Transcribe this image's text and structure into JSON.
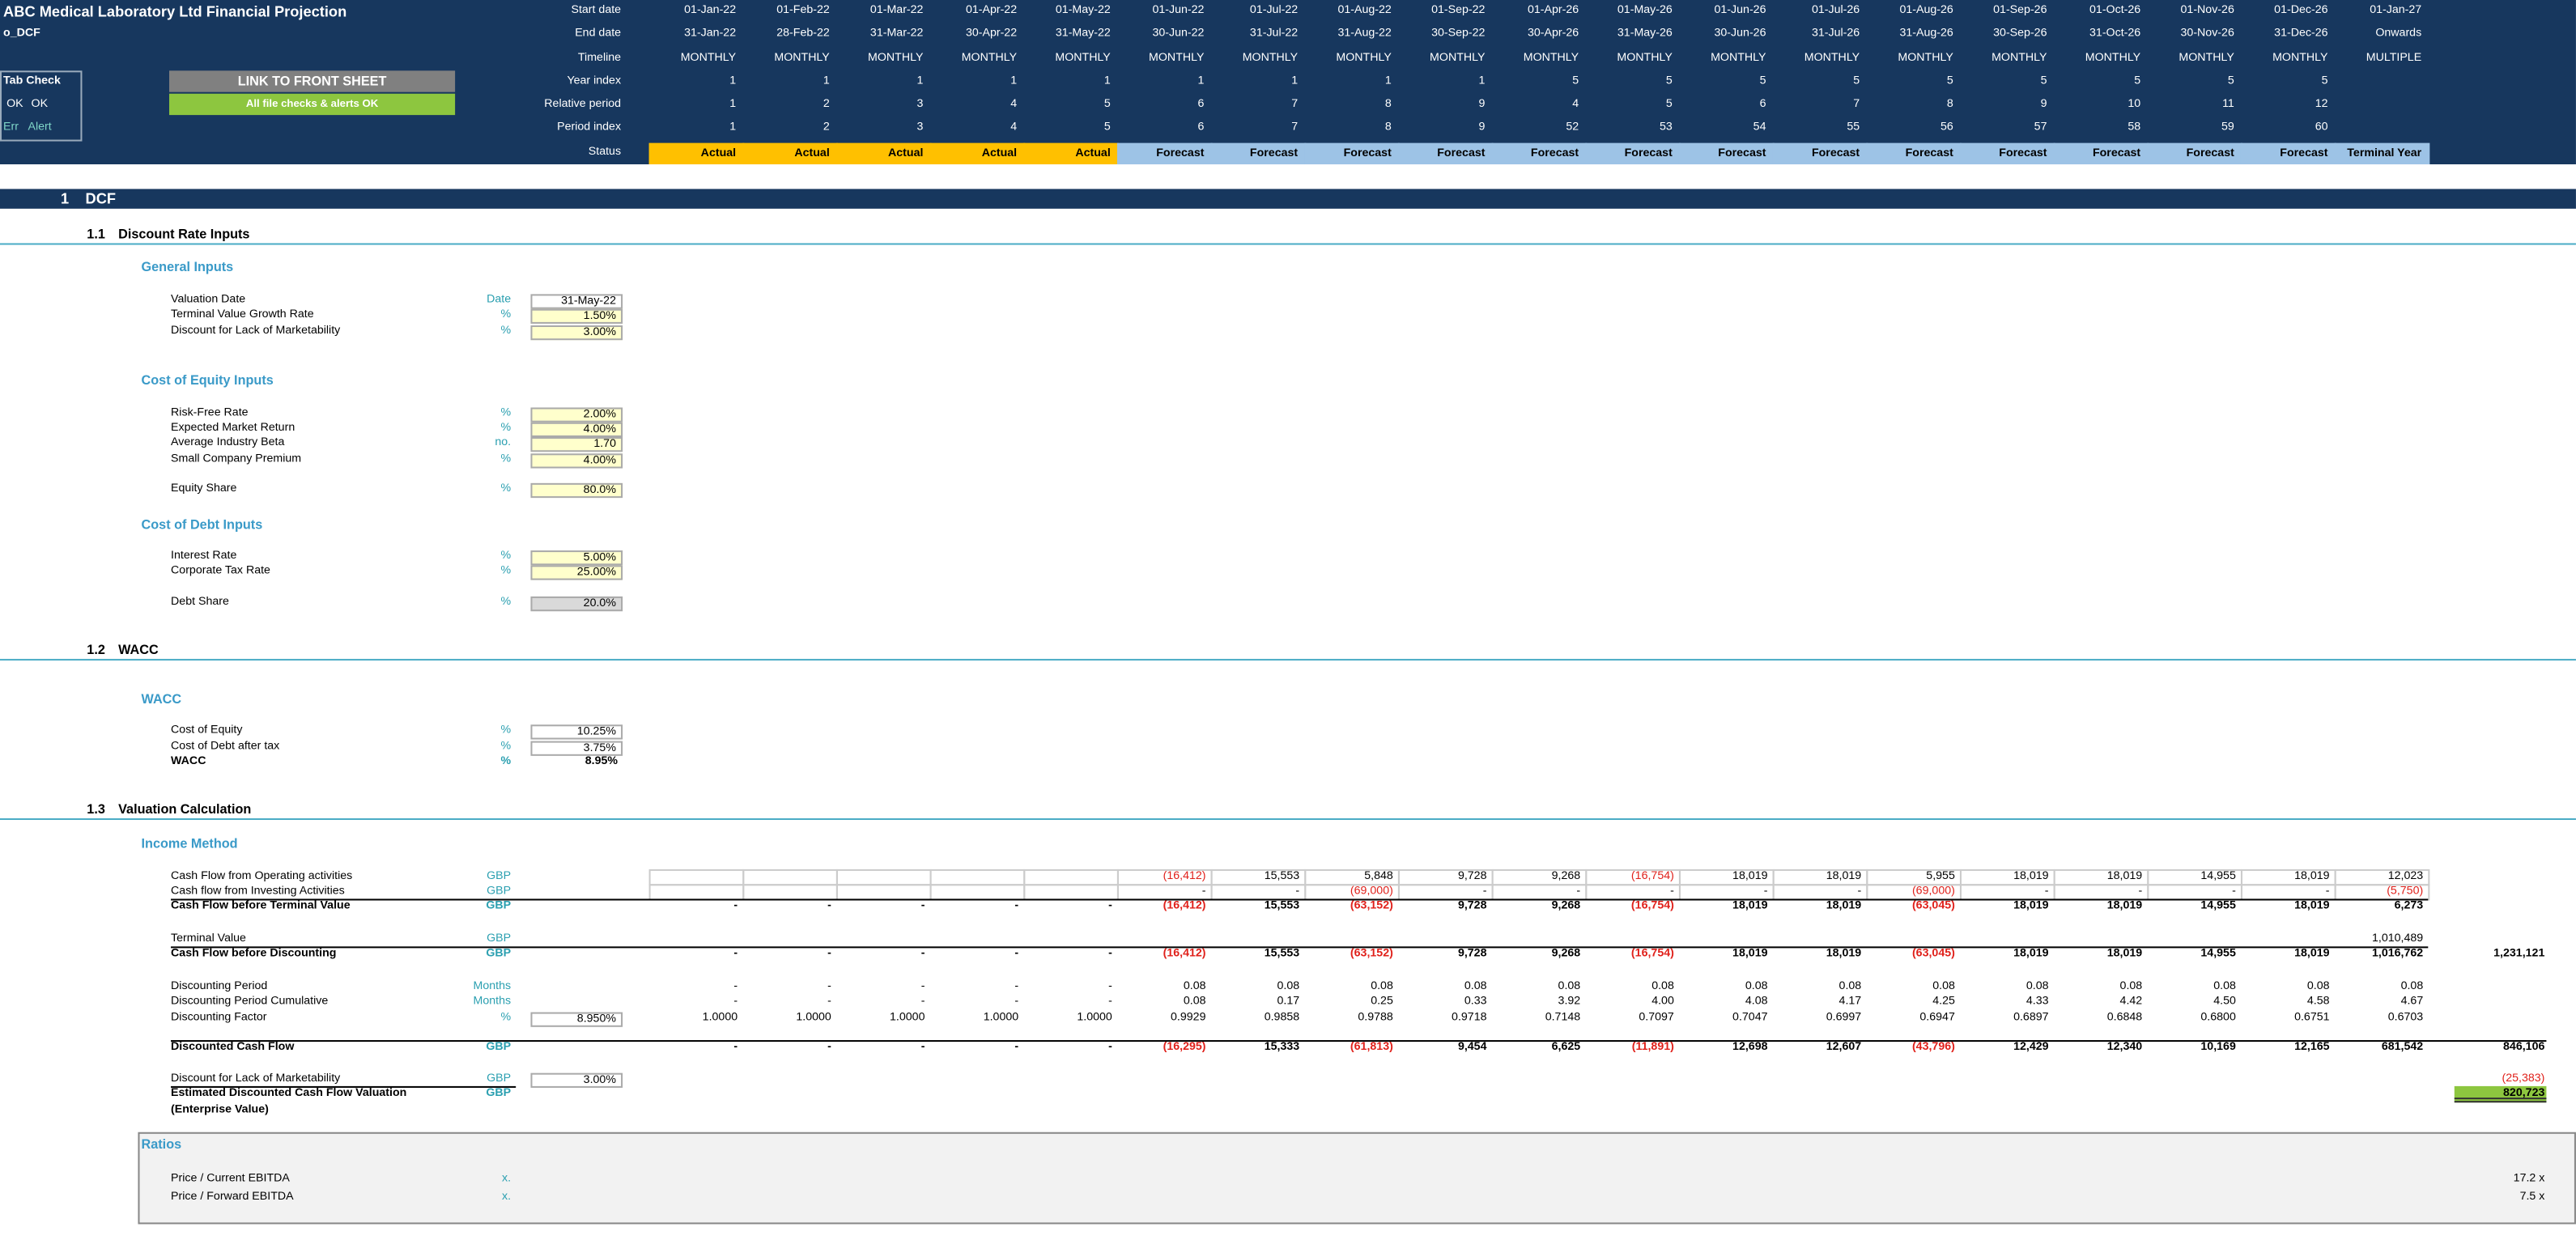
{
  "header": {
    "title": "ABC Medical Laboratory Ltd Financial Projection",
    "sheet": "o_DCF",
    "tab_check": {
      "title": "Tab Check",
      "ok": [
        "OK",
        "OK"
      ],
      "err": [
        "Err",
        "Alert"
      ]
    },
    "buttons": [
      {
        "label": "LINK TO FRONT SHEET",
        "color": "#808080"
      },
      {
        "label": "All file checks & alerts OK",
        "color": "#8dc63f"
      }
    ],
    "rows": [
      {
        "label": "Start date",
        "values": [
          "01-Jan-22",
          "01-Feb-22",
          "01-Mar-22",
          "01-Apr-22",
          "01-May-22",
          "01-Jun-22",
          "01-Jul-22",
          "01-Aug-22",
          "01-Sep-22",
          "01-Apr-26",
          "01-May-26",
          "01-Jun-26",
          "01-Jul-26",
          "01-Aug-26",
          "01-Sep-26",
          "01-Oct-26",
          "01-Nov-26",
          "01-Dec-26",
          "01-Jan-27"
        ]
      },
      {
        "label": "End date",
        "values": [
          "31-Jan-22",
          "28-Feb-22",
          "31-Mar-22",
          "30-Apr-22",
          "31-May-22",
          "30-Jun-22",
          "31-Jul-22",
          "31-Aug-22",
          "30-Sep-22",
          "30-Apr-26",
          "31-May-26",
          "30-Jun-26",
          "31-Jul-26",
          "31-Aug-26",
          "30-Sep-26",
          "31-Oct-26",
          "30-Nov-26",
          "31-Dec-26",
          "Onwards"
        ]
      },
      {
        "label": "Timeline",
        "values": [
          "MONTHLY",
          "MONTHLY",
          "MONTHLY",
          "MONTHLY",
          "MONTHLY",
          "MONTHLY",
          "MONTHLY",
          "MONTHLY",
          "MONTHLY",
          "MONTHLY",
          "MONTHLY",
          "MONTHLY",
          "MONTHLY",
          "MONTHLY",
          "MONTHLY",
          "MONTHLY",
          "MONTHLY",
          "MONTHLY",
          "MULTIPLE"
        ]
      },
      {
        "label": "Year index",
        "values": [
          1,
          1,
          1,
          1,
          1,
          1,
          1,
          1,
          1,
          5,
          5,
          5,
          5,
          5,
          5,
          5,
          5,
          5,
          null
        ]
      },
      {
        "label": "Relative period",
        "values": [
          1,
          2,
          3,
          4,
          5,
          6,
          7,
          8,
          9,
          4,
          5,
          6,
          7,
          8,
          9,
          10,
          11,
          12,
          null
        ]
      },
      {
        "label": "Period index",
        "values": [
          1,
          2,
          3,
          4,
          5,
          6,
          7,
          8,
          9,
          52,
          53,
          54,
          55,
          56,
          57,
          58,
          59,
          60,
          null
        ]
      },
      {
        "label": "Status",
        "values": [
          "Actual",
          "Actual",
          "Actual",
          "Actual",
          "Actual",
          "Forecast",
          "Forecast",
          "Forecast",
          "Forecast",
          "Forecast",
          "Forecast",
          "Forecast",
          "Forecast",
          "Forecast",
          "Forecast",
          "Forecast",
          "Forecast",
          "Forecast",
          "Terminal Year"
        ],
        "colors": [
          "#ffc000",
          "#ffc000",
          "#ffc000",
          "#ffc000",
          "#ffc000",
          "#9dc3e6",
          "#9dc3e6",
          "#9dc3e6",
          "#9dc3e6",
          "#9dc3e6",
          "#9dc3e6",
          "#9dc3e6",
          "#9dc3e6",
          "#9dc3e6",
          "#9dc3e6",
          "#9dc3e6",
          "#9dc3e6",
          "#9dc3e6",
          "#9dc3e6"
        ]
      }
    ]
  },
  "section": {
    "number": "1",
    "title": "DCF"
  },
  "subsections": [
    {
      "number": "1.1",
      "title": "Discount Rate Inputs",
      "groups": [
        {
          "heading": "General Inputs",
          "rows": [
            {
              "label": "Valuation Date",
              "unit": "Date",
              "input": "31-May-22",
              "input_fill": "#ffffff"
            },
            {
              "label": "Terminal Value Growth Rate",
              "unit": "%",
              "input": "1.50%",
              "input_fill": "#ffffcc"
            },
            {
              "label": "Discount for Lack of Marketability",
              "unit": "%",
              "input": "3.00%",
              "input_fill": "#ffffcc"
            }
          ]
        },
        {
          "heading": "Cost of Equity Inputs",
          "rows": [
            {
              "label": "Risk-Free Rate",
              "unit": "%",
              "input": "2.00%",
              "input_fill": "#ffffcc"
            },
            {
              "label": "Expected Market Return",
              "unit": "%",
              "input": "4.00%",
              "input_fill": "#ffffcc"
            },
            {
              "label": "Average Industry Beta",
              "unit": "no.",
              "input": "1.70",
              "input_fill": "#ffffcc"
            },
            {
              "label": "Small Company Premium",
              "unit": "%",
              "input": "4.00%",
              "input_fill": "#ffffcc"
            },
            {
              "label": "Equity Share",
              "unit": "%",
              "input": "80.0%",
              "input_fill": "#ffffcc"
            }
          ]
        },
        {
          "heading": "Cost of Debt Inputs",
          "rows": [
            {
              "label": "Interest Rate",
              "unit": "%",
              "input": "5.00%",
              "input_fill": "#ffffcc"
            },
            {
              "label": "Corporate Tax Rate",
              "unit": "%",
              "input": "25.00%",
              "input_fill": "#ffffcc"
            },
            {
              "label": "Debt Share",
              "unit": "%",
              "input": "20.0%",
              "input_fill": "#d9d9d9"
            }
          ]
        }
      ]
    },
    {
      "number": "1.2",
      "title": "WACC",
      "groups": [
        {
          "heading": "WACC",
          "rows": [
            {
              "label": "Cost of Equity",
              "unit": "%",
              "input": "10.25%",
              "input_fill": "#ffffff"
            },
            {
              "label": "Cost of Debt after tax",
              "unit": "%",
              "input": "3.75%",
              "input_fill": "#ffffff"
            },
            {
              "label": "WACC",
              "unit": "%",
              "input": "8.95%",
              "bold": true
            }
          ]
        }
      ]
    },
    {
      "number": "1.3",
      "title": "Valuation Calculation",
      "groups": [
        {
          "heading": "Income Method",
          "rows": [
            {
              "label": "Cash Flow from Operating activities",
              "unit": "GBP",
              "values": [
                null,
                null,
                null,
                null,
                null,
                "(16,412)",
                "15,553",
                "5,848",
                "9,728",
                "9,268",
                "(16,754)",
                "18,019",
                "18,019",
                "5,955",
                "18,019",
                "18,019",
                "14,955",
                "18,019",
                "12,023"
              ]
            },
            {
              "label": "Cash flow from Investing Activities",
              "unit": "GBP",
              "values": [
                null,
                null,
                null,
                null,
                null,
                "-",
                "-",
                "(69,000)",
                "-",
                "-",
                "-",
                "-",
                "-",
                "(69,000)",
                "-",
                "-",
                "-",
                "-",
                "(5,750)"
              ]
            },
            {
              "label": "Cash Flow before Terminal Value",
              "unit": "GBP",
              "bold": true,
              "values": [
                "-",
                "-",
                "-",
                "-",
                "-",
                "(16,412)",
                "15,553",
                "(63,152)",
                "9,728",
                "9,268",
                "(16,754)",
                "18,019",
                "18,019",
                "(63,045)",
                "18,019",
                "18,019",
                "14,955",
                "18,019",
                "6,273"
              ]
            },
            {
              "label": "Terminal Value",
              "unit": "GBP",
              "values": [
                null,
                null,
                null,
                null,
                null,
                null,
                null,
                null,
                null,
                null,
                null,
                null,
                null,
                null,
                null,
                null,
                null,
                null,
                "1,010,489"
              ]
            },
            {
              "label": "Cash Flow before Discounting",
              "unit": "GBP",
              "bold": true,
              "values": [
                "-",
                "-",
                "-",
                "-",
                "-",
                "(16,412)",
                "15,553",
                "(63,152)",
                "9,728",
                "9,268",
                "(16,754)",
                "18,019",
                "18,019",
                "(63,045)",
                "18,019",
                "18,019",
                "14,955",
                "18,019",
                "1,016,762"
              ],
              "total": "1,231,121"
            },
            {
              "label": "Discounting Period",
              "unit": "Months",
              "values": [
                "-",
                "-",
                "-",
                "-",
                "-",
                "0.08",
                "0.08",
                "0.08",
                "0.08",
                "0.08",
                "0.08",
                "0.08",
                "0.08",
                "0.08",
                "0.08",
                "0.08",
                "0.08",
                "0.08",
                "0.08"
              ]
            },
            {
              "label": "Discounting Period Cumulative",
              "unit": "Months",
              "values": [
                "-",
                "-",
                "-",
                "-",
                "-",
                "0.08",
                "0.17",
                "0.25",
                "0.33",
                "3.92",
                "4.00",
                "4.08",
                "4.17",
                "4.25",
                "4.33",
                "4.42",
                "4.50",
                "4.58",
                "4.67"
              ]
            },
            {
              "label": "Discounting Factor",
              "unit": "%",
              "input": "8.950%",
              "input_fill": "#ffffff",
              "values": [
                "1.0000",
                "1.0000",
                "1.0000",
                "1.0000",
                "1.0000",
                "0.9929",
                "0.9858",
                "0.9788",
                "0.9718",
                "0.7148",
                "0.7097",
                "0.7047",
                "0.6997",
                "0.6947",
                "0.6897",
                "0.6848",
                "0.6800",
                "0.6751",
                "0.6703"
              ]
            },
            {
              "label": "Discounted Cash Flow",
              "unit": "GBP",
              "bold": true,
              "values": [
                "-",
                "-",
                "-",
                "-",
                "-",
                "(16,295)",
                "15,333",
                "(61,813)",
                "9,454",
                "6,625",
                "(11,891)",
                "12,698",
                "12,607",
                "(43,796)",
                "12,429",
                "12,340",
                "10,169",
                "12,165",
                "681,542"
              ],
              "total": "846,106"
            },
            {
              "label": "Discount for Lack of Marketability",
              "unit": "GBP",
              "input": "3.00%",
              "input_fill": "#ffffff",
              "total": "(25,383)"
            },
            {
              "label": "Estimated Discounted Cash Flow Valuation",
              "sublabel": "(Enterprise Value)",
              "unit": "GBP",
              "bold": true,
              "total": "820,723",
              "total_fill": "#8dc63f"
            }
          ]
        },
        {
          "heading": "Ratios",
          "rows": [
            {
              "label": "Price / Current EBITDA",
              "unit": "x.",
              "total": "17.2 x"
            },
            {
              "label": "Price / Forward EBITDA",
              "unit": "x.",
              "total": "7.5 x"
            }
          ]
        }
      ]
    }
  ]
}
